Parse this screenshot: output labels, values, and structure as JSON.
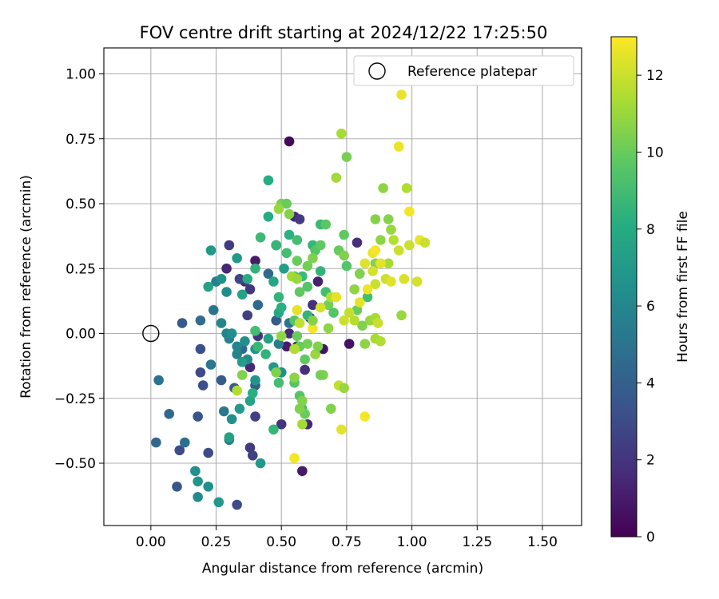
{
  "chart_data": {
    "type": "scatter",
    "title": "FOV centre drift starting at 2024/12/22 17:25:50",
    "xlabel": "Angular distance from reference (arcmin)",
    "ylabel": "Rotation from reference (arcmin)",
    "xlim": [
      -0.18,
      1.65
    ],
    "ylim": [
      -0.74,
      1.1
    ],
    "xticks": [
      0.0,
      0.25,
      0.5,
      0.75,
      1.0,
      1.25,
      1.5
    ],
    "xtick_labels": [
      "0.00",
      "0.25",
      "0.50",
      "0.75",
      "1.00",
      "1.25",
      "1.50"
    ],
    "yticks": [
      -0.5,
      -0.25,
      0.0,
      0.25,
      0.5,
      0.75,
      1.0
    ],
    "ytick_labels": [
      "−0.50",
      "−0.25",
      "0.00",
      "0.25",
      "0.50",
      "0.75",
      "1.00"
    ],
    "grid": true,
    "colormap": "viridis",
    "colorbar": {
      "label": "Hours from first FF file",
      "range": [
        0,
        13
      ],
      "ticks": [
        0,
        2,
        4,
        6,
        8,
        10,
        12
      ],
      "tick_labels": [
        "0",
        "2",
        "4",
        "6",
        "8",
        "10",
        "12"
      ]
    },
    "legend": {
      "position": "top-right",
      "entries": [
        "Reference platepar"
      ]
    },
    "reference_point": {
      "x": 0.0,
      "y": 0.0
    },
    "points": [
      [
        0.53,
        0.74,
        0.3
      ],
      [
        0.58,
        -0.53,
        1.0
      ],
      [
        0.55,
        0.45,
        1.5
      ],
      [
        0.6,
        -0.35,
        1.5
      ],
      [
        0.62,
        0.11,
        1.8
      ],
      [
        0.64,
        0.2,
        1.2
      ],
      [
        0.66,
        -0.06,
        0.8
      ],
      [
        0.76,
        -0.04,
        0.6
      ],
      [
        0.79,
        0.35,
        1.8
      ],
      [
        0.52,
        -0.05,
        1.0
      ],
      [
        0.5,
        -0.35,
        2.0
      ],
      [
        0.38,
        -0.44,
        2.3
      ],
      [
        0.39,
        -0.47,
        2.5
      ],
      [
        0.33,
        -0.66,
        3.0
      ],
      [
        0.36,
        0.2,
        1.8
      ],
      [
        0.4,
        0.28,
        1.0
      ],
      [
        0.38,
        0.17,
        2.1
      ],
      [
        0.29,
        0.25,
        1.4
      ],
      [
        0.3,
        0.34,
        2.3
      ],
      [
        0.37,
        0.07,
        2.5
      ],
      [
        0.4,
        -0.32,
        2.5
      ],
      [
        0.35,
        -0.11,
        2.0
      ],
      [
        0.38,
        -0.13,
        1.5
      ],
      [
        0.34,
        0.21,
        2.8
      ],
      [
        0.41,
        -0.01,
        2.0
      ],
      [
        0.48,
        0.34,
        1.8
      ],
      [
        0.53,
        0.0,
        1.5
      ],
      [
        0.56,
        -0.05,
        1.0
      ],
      [
        0.59,
        -0.14,
        1.7
      ],
      [
        0.61,
        0.06,
        2.0
      ],
      [
        0.57,
        0.44,
        2.3
      ],
      [
        0.19,
        -0.06,
        3.2
      ],
      [
        0.18,
        -0.32,
        3.5
      ],
      [
        0.12,
        0.04,
        3.7
      ],
      [
        0.1,
        -0.59,
        3.5
      ],
      [
        0.11,
        -0.45,
        3.0
      ],
      [
        0.07,
        -0.31,
        4.5
      ],
      [
        0.02,
        -0.42,
        4.3
      ],
      [
        0.03,
        -0.18,
        5.0
      ],
      [
        0.13,
        -0.42,
        4.8
      ],
      [
        0.19,
        -0.15,
        3.0
      ],
      [
        0.2,
        -0.2,
        3.2
      ],
      [
        0.22,
        -0.46,
        3.0
      ],
      [
        0.27,
        -0.18,
        3.8
      ],
      [
        0.19,
        0.05,
        4.6
      ],
      [
        0.24,
        0.09,
        5.1
      ],
      [
        0.23,
        -0.12,
        5.2
      ],
      [
        0.25,
        0.2,
        5.6
      ],
      [
        0.29,
        0.16,
        6.3
      ],
      [
        0.28,
        -0.3,
        5.2
      ],
      [
        0.3,
        -0.41,
        5.5
      ],
      [
        0.32,
        -0.21,
        3.8
      ],
      [
        0.35,
        -0.06,
        4.5
      ],
      [
        0.4,
        -0.2,
        4.0
      ],
      [
        0.41,
        0.11,
        4.5
      ],
      [
        0.45,
        0.23,
        4.5
      ],
      [
        0.48,
        0.05,
        3.8
      ],
      [
        0.49,
        -0.04,
        5.5
      ],
      [
        0.5,
        -0.15,
        4.8
      ],
      [
        0.53,
        0.04,
        5.0
      ],
      [
        0.17,
        -0.53,
        6.5
      ],
      [
        0.18,
        -0.57,
        6.8
      ],
      [
        0.22,
        -0.59,
        6.5
      ],
      [
        0.18,
        -0.63,
        6.2
      ],
      [
        0.26,
        -0.65,
        7.0
      ],
      [
        0.3,
        -0.4,
        7.5
      ],
      [
        0.31,
        -0.33,
        6.5
      ],
      [
        0.34,
        -0.29,
        7.0
      ],
      [
        0.38,
        -0.26,
        7.5
      ],
      [
        0.39,
        -0.23,
        8.2
      ],
      [
        0.42,
        -0.5,
        7.0
      ],
      [
        0.4,
        -0.18,
        6.8
      ],
      [
        0.37,
        -0.1,
        6.2
      ],
      [
        0.33,
        -0.08,
        5.8
      ],
      [
        0.3,
        -0.02,
        5.5
      ],
      [
        0.33,
        -0.05,
        6.0
      ],
      [
        0.35,
        -0.11,
        7.2
      ],
      [
        0.36,
        -0.03,
        6.5
      ],
      [
        0.4,
        -0.06,
        6.8
      ],
      [
        0.45,
        -0.02,
        7.5
      ],
      [
        0.47,
        -0.13,
        7.0
      ],
      [
        0.5,
        -0.15,
        6.5
      ],
      [
        0.22,
        0.18,
        7.5
      ],
      [
        0.23,
        0.32,
        7.0
      ],
      [
        0.27,
        0.21,
        6.5
      ],
      [
        0.27,
        0.04,
        6.0
      ],
      [
        0.29,
        0.0,
        5.9
      ],
      [
        0.31,
        0.0,
        6.4
      ],
      [
        0.33,
        0.29,
        7.0
      ],
      [
        0.35,
        0.15,
        7.5
      ],
      [
        0.37,
        0.21,
        8.0
      ],
      [
        0.4,
        0.25,
        8.5
      ],
      [
        0.42,
        0.37,
        8.8
      ],
      [
        0.45,
        0.45,
        8.0
      ],
      [
        0.45,
        0.59,
        8.0
      ],
      [
        0.48,
        0.34,
        8.6
      ],
      [
        0.47,
        0.2,
        7.8
      ],
      [
        0.49,
        0.14,
        8.5
      ],
      [
        0.49,
        0.08,
        7.8
      ],
      [
        0.5,
        0.1,
        8.2
      ],
      [
        0.51,
        0.25,
        7.3
      ],
      [
        0.52,
        0.31,
        9.0
      ],
      [
        0.53,
        0.38,
        8.3
      ],
      [
        0.55,
        0.22,
        9.2
      ],
      [
        0.56,
        0.36,
        9.0
      ],
      [
        0.58,
        0.22,
        8.8
      ],
      [
        0.6,
        0.07,
        8.5
      ],
      [
        0.62,
        0.34,
        8.6
      ],
      [
        0.63,
        0.32,
        9.5
      ],
      [
        0.65,
        0.42,
        8.8
      ],
      [
        0.65,
        0.24,
        8.5
      ],
      [
        0.67,
        0.16,
        9.0
      ],
      [
        0.67,
        0.42,
        9.7
      ],
      [
        0.65,
        0.34,
        9.8
      ],
      [
        0.62,
        0.29,
        10.5
      ],
      [
        0.6,
        0.18,
        9.5
      ],
      [
        0.57,
        0.16,
        9.8
      ],
      [
        0.56,
        0.28,
        10.0
      ],
      [
        0.55,
        0.05,
        9.5
      ],
      [
        0.56,
        -0.01,
        10.0
      ],
      [
        0.55,
        -0.19,
        9.5
      ],
      [
        0.57,
        -0.24,
        9.5
      ],
      [
        0.58,
        -0.29,
        9.2
      ],
      [
        0.59,
        -0.31,
        10.0
      ],
      [
        0.57,
        -0.29,
        10.5
      ],
      [
        0.6,
        -0.04,
        10.3
      ],
      [
        0.63,
        -0.08,
        11.0
      ],
      [
        0.66,
        -0.16,
        10.5
      ],
      [
        0.68,
        0.02,
        10.8
      ],
      [
        0.68,
        0.11,
        10.2
      ],
      [
        0.7,
        0.08,
        9.5
      ],
      [
        0.72,
        0.32,
        10.0
      ],
      [
        0.74,
        0.3,
        10.5
      ],
      [
        0.74,
        0.38,
        9.8
      ],
      [
        0.75,
        0.26,
        9.5
      ],
      [
        0.78,
        0.17,
        10.8
      ],
      [
        0.79,
        0.09,
        10.0
      ],
      [
        0.8,
        0.23,
        10.5
      ],
      [
        0.81,
        0.03,
        10.5
      ],
      [
        0.82,
        -0.04,
        10.8
      ],
      [
        0.83,
        0.14,
        9.0
      ],
      [
        0.84,
        0.05,
        11.0
      ],
      [
        0.86,
        -0.02,
        11.3
      ],
      [
        0.86,
        0.27,
        10.6
      ],
      [
        0.86,
        0.44,
        10.6
      ],
      [
        0.88,
        0.36,
        10.8
      ],
      [
        0.89,
        0.56,
        10.8
      ],
      [
        0.91,
        0.44,
        10.6
      ],
      [
        0.91,
        0.27,
        11.3
      ],
      [
        0.92,
        0.4,
        11.0
      ],
      [
        0.93,
        0.36,
        11.6
      ],
      [
        0.96,
        0.07,
        11.0
      ],
      [
        0.98,
        0.56,
        11.5
      ],
      [
        0.71,
        0.6,
        11.2
      ],
      [
        0.73,
        0.77,
        11.3
      ],
      [
        0.75,
        0.68,
        10.3
      ],
      [
        0.5,
        0.5,
        10.4
      ],
      [
        0.52,
        0.5,
        10.0
      ],
      [
        0.53,
        0.46,
        10.6
      ],
      [
        0.4,
        0.01,
        9.0
      ],
      [
        0.41,
        -0.05,
        8.7
      ],
      [
        0.44,
        -0.08,
        8.5
      ],
      [
        0.47,
        -0.37,
        8.6
      ],
      [
        0.49,
        -0.19,
        9.0
      ],
      [
        0.55,
        -0.17,
        10.7
      ],
      [
        0.57,
        -0.05,
        10.0
      ],
      [
        0.59,
        -0.1,
        9.8
      ],
      [
        0.64,
        -0.05,
        10.5
      ],
      [
        0.65,
        -0.16,
        10.3
      ],
      [
        0.69,
        -0.29,
        10.5
      ],
      [
        0.72,
        -0.2,
        11.8
      ],
      [
        0.74,
        -0.21,
        11.0
      ],
      [
        0.73,
        -0.37,
        12.5
      ],
      [
        0.82,
        -0.32,
        12.8
      ],
      [
        0.86,
        0.19,
        12.0
      ],
      [
        0.85,
        0.24,
        12.2
      ],
      [
        0.85,
        0.31,
        12.6
      ],
      [
        0.86,
        0.32,
        12.9
      ],
      [
        0.88,
        0.27,
        12.5
      ],
      [
        0.9,
        0.21,
        12.0
      ],
      [
        0.92,
        0.2,
        12.4
      ],
      [
        0.95,
        0.32,
        12.0
      ],
      [
        0.95,
        0.72,
        12.6
      ],
      [
        0.96,
        0.92,
        12.6
      ],
      [
        0.97,
        0.21,
        12.3
      ],
      [
        0.99,
        0.47,
        12.8
      ],
      [
        0.99,
        0.34,
        12.0
      ],
      [
        1.02,
        0.2,
        12.2
      ],
      [
        1.03,
        0.36,
        12.6
      ],
      [
        1.05,
        0.35,
        12.0
      ],
      [
        0.55,
        -0.48,
        12.8
      ],
      [
        0.56,
        0.09,
        12.5
      ],
      [
        0.57,
        0.04,
        11.8
      ],
      [
        0.62,
        0.02,
        12.7
      ],
      [
        0.65,
        0.1,
        12.2
      ],
      [
        0.69,
        0.14,
        11.6
      ],
      [
        0.71,
        0.14,
        12.5
      ],
      [
        0.74,
        0.05,
        12.0
      ],
      [
        0.76,
        0.08,
        11.8
      ],
      [
        0.78,
        0.05,
        11.6
      ],
      [
        0.8,
        0.12,
        12.5
      ],
      [
        0.82,
        0.27,
        12.4
      ],
      [
        0.83,
        0.17,
        12.7
      ],
      [
        0.86,
        0.06,
        11.3
      ],
      [
        0.87,
        0.04,
        12.0
      ],
      [
        0.88,
        -0.03,
        11.5
      ],
      [
        0.49,
        0.48,
        11.0
      ],
      [
        0.48,
        -0.15,
        10.5
      ],
      [
        0.5,
        -0.01,
        10.8
      ],
      [
        0.54,
        0.22,
        11.2
      ],
      [
        0.33,
        -0.22,
        11.5
      ],
      [
        0.35,
        -0.16,
        10.5
      ],
      [
        0.55,
        -0.06,
        11.5
      ],
      [
        0.56,
        0.21,
        11.0
      ],
      [
        0.58,
        -0.35,
        11.2
      ],
      [
        0.58,
        -0.26,
        10.5
      ],
      [
        0.6,
        0.26,
        10.2
      ],
      [
        0.62,
        0.05,
        10.6
      ]
    ]
  }
}
